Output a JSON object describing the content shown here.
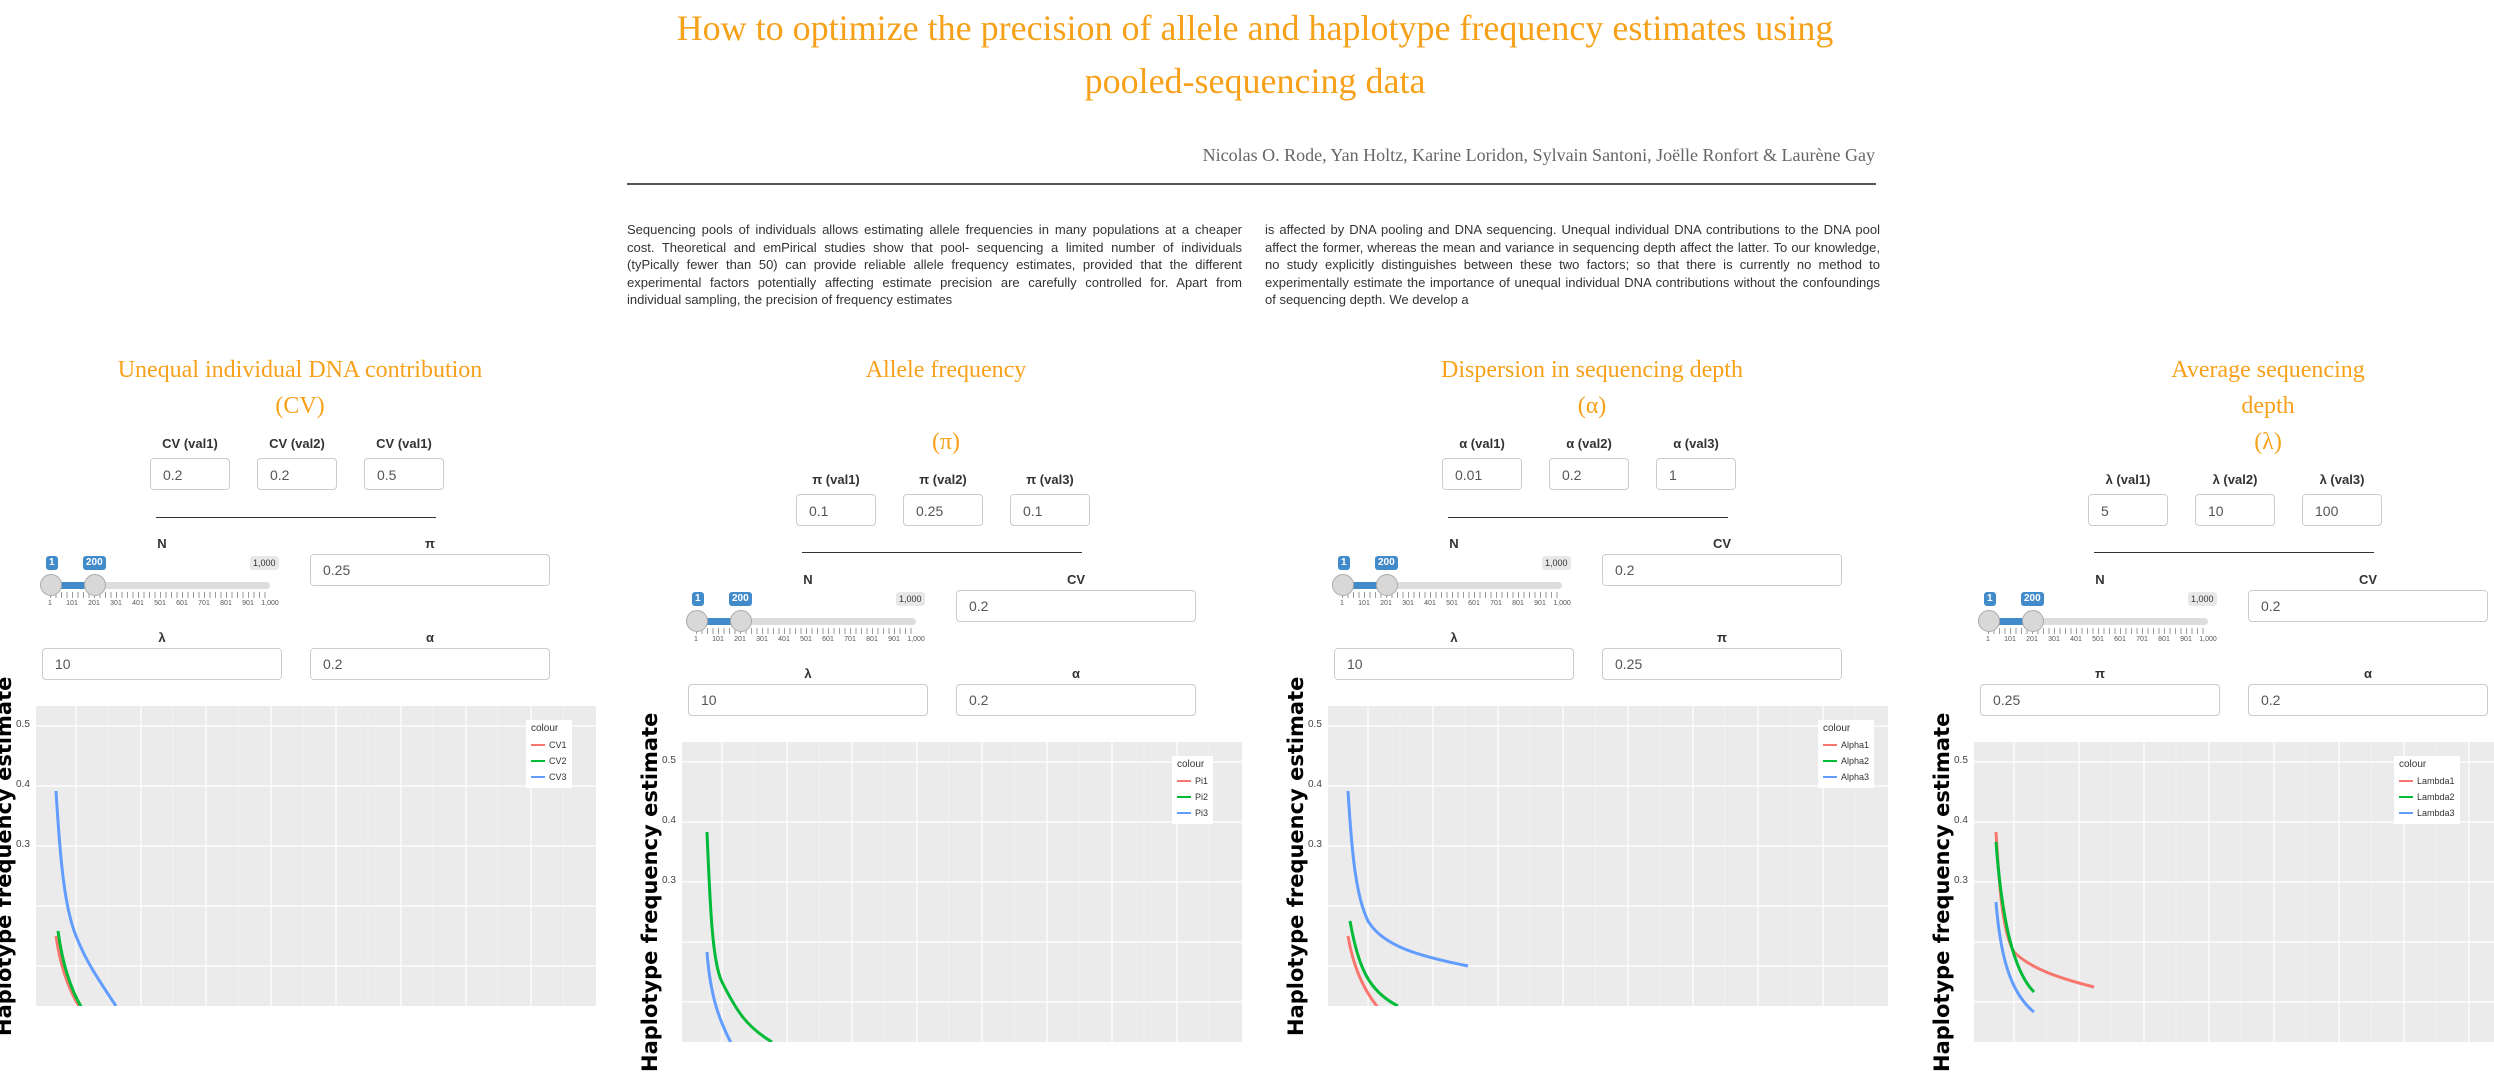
{
  "header": {
    "title": "How to optimize the precision of allele and haplotype frequency estimates using pooled-sequencing data",
    "authors": "Nicolas O. Rode, Yan Holtz, Karine Loridon, Sylvain Santoni, Joëlle Ronfort & Laurène Gay"
  },
  "abstract": {
    "left": "Sequencing pools of individuals allows estimating allele frequencies in many populations at a cheaper cost. Theoretical and emPirical studies show that pool- sequencing a limited number of individuals (tyPically fewer than 50) can provide reliable allele frequency estimates, provided that the different experimental factors potentially affecting estimate precision are carefully controlled for. Apart from individual sampling, the precision of frequency estimates",
    "right": "is affected by DNA pooling and DNA sequencing. Unequal individual DNA contributions to the DNA pool affect the former, whereas the mean and variance in sequencing depth affect the latter. To our knowledge, no study explicitly distinguishes between these two factors; so that there is currently no method to experimentally estimate the importance of unequal individual DNA contributions without the confoundings of sequencing depth. We develop a"
  },
  "slider": {
    "low": "1",
    "high": "200",
    "max": "1,000",
    "ticks": [
      "1",
      "101",
      "201",
      "301",
      "401",
      "501",
      "601",
      "701",
      "801",
      "901",
      "1,000"
    ]
  },
  "axis": {
    "ylabel": "Haplotype frequency estimate",
    "yticks": [
      "0.5",
      "0.4",
      "0.3"
    ]
  },
  "legend_title": "colour",
  "panels": [
    {
      "title_lines": [
        "Unequal individual DNA contribution",
        "(CV)"
      ],
      "vars": [
        {
          "label": "CV (val1)",
          "value": "0.2"
        },
        {
          "label": "CV (val2)",
          "value": "0.2"
        },
        {
          "label": "CV (val1)",
          "value": "0.5"
        }
      ],
      "slider_label": "N",
      "fields": [
        {
          "label": "π",
          "value": "0.25"
        },
        {
          "label": "λ",
          "value": "10"
        },
        {
          "label": "α",
          "value": "0.2"
        }
      ],
      "legend": [
        "CV1",
        "CV2",
        "CV3"
      ]
    },
    {
      "title_lines": [
        "Allele frequency",
        "",
        "(π)"
      ],
      "vars": [
        {
          "label": "π (val1)",
          "value": "0.1"
        },
        {
          "label": "π (val2)",
          "value": "0.25"
        },
        {
          "label": "π (val3)",
          "value": "0.1"
        }
      ],
      "slider_label": "N",
      "fields": [
        {
          "label": "CV",
          "value": "0.2"
        },
        {
          "label": "λ",
          "value": "10"
        },
        {
          "label": "α",
          "value": "0.2"
        }
      ],
      "legend": [
        "Pi1",
        "Pi2",
        "Pi3"
      ]
    },
    {
      "title_lines": [
        "Dispersion in sequencing depth",
        "(α)"
      ],
      "vars": [
        {
          "label": "α (val1)",
          "value": "0.01"
        },
        {
          "label": "α (val2)",
          "value": "0.2"
        },
        {
          "label": "α (val3)",
          "value": "1"
        }
      ],
      "slider_label": "N",
      "fields": [
        {
          "label": "CV",
          "value": "0.2"
        },
        {
          "label": "λ",
          "value": "10"
        },
        {
          "label": "π",
          "value": "0.25"
        }
      ],
      "legend": [
        "Alpha1",
        "Alpha2",
        "Alpha3"
      ]
    },
    {
      "title_lines": [
        "Average sequencing",
        "depth",
        "(λ)"
      ],
      "vars": [
        {
          "label": "λ (val1)",
          "value": "5"
        },
        {
          "label": "λ (val2)",
          "value": "10"
        },
        {
          "label": "λ (val3)",
          "value": "100"
        }
      ],
      "slider_label": "N",
      "fields": [
        {
          "label": "CV",
          "value": "0.2"
        },
        {
          "label": "π",
          "value": "0.25"
        },
        {
          "label": "α",
          "value": "0.2"
        }
      ],
      "legend": [
        "Lambda1",
        "Lambda2",
        "Lambda3"
      ]
    }
  ],
  "colors": {
    "accent": "#f7a11a",
    "series": [
      "#f8766d",
      "#00ba38",
      "#619cff"
    ],
    "slider": "#428bca"
  }
}
